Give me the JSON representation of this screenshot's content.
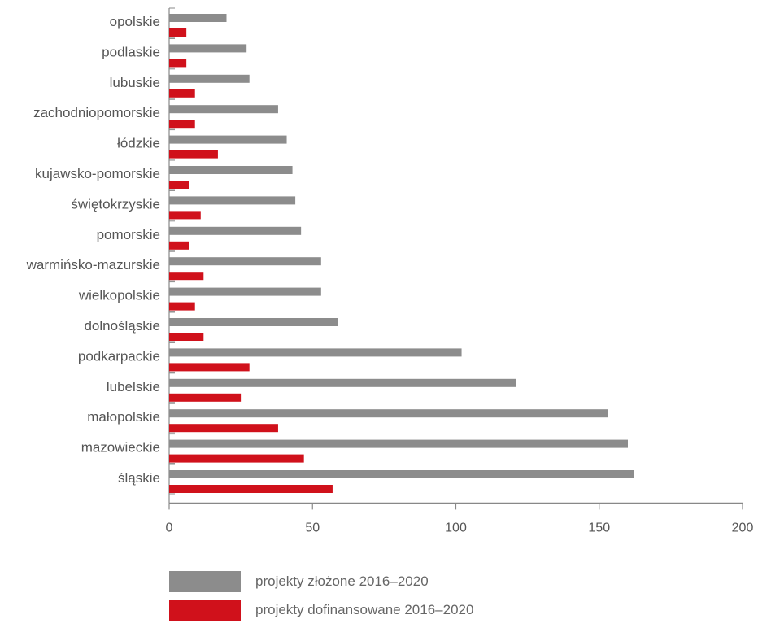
{
  "chart_data": {
    "type": "bar",
    "orientation": "horizontal",
    "categories": [
      "opolskie",
      "podlaskie",
      "lubuskie",
      "zachodniopomorskie",
      "łódzkie",
      "kujawsko-pomorskie",
      "świętokrzyskie",
      "pomorskie",
      "warmińsko-mazurskie",
      "wielkopolskie",
      "dolnośląskie",
      "podkarpackie",
      "lubelskie",
      "małopolskie",
      "mazowieckie",
      "śląskie"
    ],
    "series": [
      {
        "name": "projekty złożone 2016–2020",
        "color": "#8c8c8c",
        "values": [
          20,
          27,
          28,
          38,
          41,
          43,
          44,
          46,
          53,
          53,
          59,
          102,
          121,
          153,
          160,
          162
        ]
      },
      {
        "name": "projekty dofinansowane 2016–2020",
        "color": "#d0111b",
        "values": [
          6,
          6,
          9,
          9,
          17,
          7,
          11,
          7,
          12,
          9,
          12,
          28,
          25,
          38,
          47,
          57
        ]
      }
    ],
    "xlim": [
      0,
      200
    ],
    "xticks": [
      0,
      50,
      100,
      150,
      200
    ],
    "xtick_labels": [
      "0",
      "50",
      "100",
      "150",
      "200"
    ],
    "grid": false,
    "legend_position": "bottom-left",
    "title": "",
    "xlabel": "",
    "ylabel": ""
  },
  "legend": {
    "items": [
      {
        "label": "projekty złożone 2016–2020",
        "color": "#8c8c8c"
      },
      {
        "label": "projekty dofinansowane 2016–2020",
        "color": "#d0111b"
      }
    ]
  },
  "colors": {
    "axis": "#888888",
    "text": "#555555"
  }
}
